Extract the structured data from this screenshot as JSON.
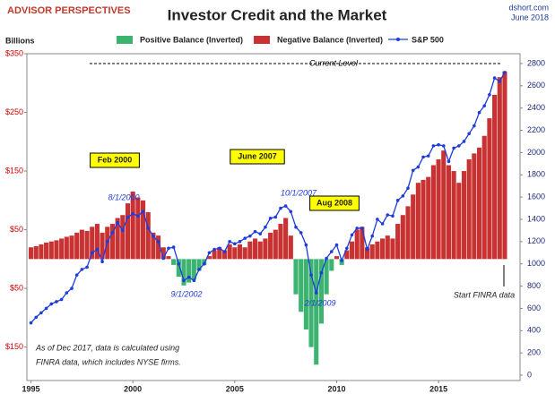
{
  "brand": "ADVISOR PERSPECTIVES",
  "source": "dshort.com",
  "date": "June 2018",
  "chart_data": {
    "type": "bar-line",
    "title": "Investor Credit and the Market",
    "y_label": "Billions",
    "x": [
      1995,
      1995.25,
      1995.5,
      1995.75,
      1996,
      1996.25,
      1996.5,
      1996.75,
      1997,
      1997.25,
      1997.5,
      1997.75,
      1998,
      1998.25,
      1998.5,
      1998.75,
      1999,
      1999.25,
      1999.5,
      1999.75,
      2000,
      2000.25,
      2000.5,
      2000.75,
      2001,
      2001.25,
      2001.5,
      2001.75,
      2002,
      2002.25,
      2002.5,
      2002.75,
      2003,
      2003.25,
      2003.5,
      2003.75,
      2004,
      2004.25,
      2004.5,
      2004.75,
      2005,
      2005.25,
      2005.5,
      2005.75,
      2006,
      2006.25,
      2006.5,
      2006.75,
      2007,
      2007.25,
      2007.5,
      2007.75,
      2008,
      2008.25,
      2008.5,
      2008.75,
      2009,
      2009.25,
      2009.5,
      2009.75,
      2010,
      2010.25,
      2010.5,
      2010.75,
      2011,
      2011.25,
      2011.5,
      2011.75,
      2012,
      2012.25,
      2012.5,
      2012.75,
      2013,
      2013.25,
      2013.5,
      2013.75,
      2014,
      2014.25,
      2014.5,
      2014.75,
      2015,
      2015.25,
      2015.5,
      2015.75,
      2016,
      2016.25,
      2016.5,
      2016.75,
      2017,
      2017.25,
      2017.5,
      2017.75,
      2018,
      2018.25
    ],
    "series": [
      {
        "name": "Positive Balance (Inverted)",
        "color": "#3cb371",
        "values": [
          null,
          null,
          null,
          null,
          null,
          null,
          null,
          null,
          null,
          null,
          null,
          null,
          null,
          null,
          null,
          null,
          null,
          null,
          null,
          null,
          null,
          null,
          null,
          null,
          null,
          null,
          null,
          null,
          -10,
          -30,
          -45,
          -40,
          -35,
          -20,
          -10,
          null,
          null,
          null,
          null,
          null,
          null,
          null,
          null,
          null,
          null,
          null,
          null,
          null,
          null,
          null,
          null,
          null,
          -60,
          -90,
          -120,
          -150,
          -180,
          -110,
          -60,
          -20,
          null,
          -10,
          null,
          null,
          null,
          null,
          null,
          null,
          null,
          null,
          null,
          null,
          null,
          null,
          null,
          null,
          null,
          null,
          null,
          null,
          null,
          null,
          null,
          null,
          null,
          null,
          null,
          null,
          null,
          null,
          null,
          null,
          null,
          null
        ]
      },
      {
        "name": "Negative Balance (Inverted)",
        "color": "#c83232",
        "values": [
          20,
          22,
          25,
          28,
          30,
          32,
          35,
          38,
          40,
          45,
          50,
          48,
          55,
          60,
          45,
          55,
          60,
          70,
          75,
          95,
          115,
          105,
          100,
          80,
          45,
          40,
          20,
          5,
          null,
          null,
          null,
          null,
          null,
          null,
          null,
          5,
          15,
          20,
          15,
          25,
          20,
          25,
          20,
          30,
          35,
          30,
          35,
          45,
          50,
          60,
          70,
          40,
          null,
          null,
          null,
          null,
          null,
          null,
          null,
          null,
          5,
          null,
          15,
          30,
          50,
          55,
          20,
          25,
          30,
          35,
          40,
          35,
          60,
          75,
          90,
          110,
          130,
          135,
          140,
          160,
          170,
          185,
          160,
          150,
          130,
          150,
          170,
          180,
          190,
          210,
          240,
          280,
          310,
          320
        ]
      },
      {
        "name": "S&P 500",
        "color": "#1e3cdc",
        "axis": "y2",
        "values": [
          470,
          520,
          560,
          600,
          640,
          660,
          680,
          740,
          780,
          900,
          950,
          970,
          1100,
          1130,
          1020,
          1200,
          1280,
          1370,
          1300,
          1420,
          1450,
          1430,
          1470,
          1320,
          1250,
          1200,
          1050,
          1140,
          1150,
          1000,
          850,
          880,
          850,
          950,
          1000,
          1100,
          1130,
          1140,
          1110,
          1200,
          1180,
          1200,
          1230,
          1250,
          1290,
          1270,
          1330,
          1410,
          1420,
          1500,
          1520,
          1470,
          1330,
          1280,
          1170,
          900,
          740,
          920,
          1050,
          1110,
          1170,
          1030,
          1140,
          1260,
          1320,
          1320,
          1130,
          1250,
          1400,
          1360,
          1440,
          1430,
          1570,
          1610,
          1680,
          1840,
          1870,
          1960,
          1970,
          2060,
          2070,
          2060,
          1920,
          2040,
          2060,
          2100,
          2170,
          2240,
          2360,
          2420,
          2520,
          2670,
          2640,
          2720
        ]
      }
    ],
    "xlim": [
      1994.8,
      2019.0
    ],
    "xticks": [
      1995,
      2000,
      2005,
      2010,
      2015
    ],
    "ylim": [
      -207,
      350
    ],
    "yticks": [
      {
        "value": 350,
        "label": "$350"
      },
      {
        "value": 250,
        "label": "$250"
      },
      {
        "value": 150,
        "label": "$150"
      },
      {
        "value": 50,
        "label": "$50"
      },
      {
        "value": -50,
        "label": "$50"
      },
      {
        "value": -150,
        "label": "$150"
      }
    ],
    "y2lim": [
      -48,
      2888
    ],
    "y2ticks": [
      0,
      200,
      400,
      600,
      800,
      1000,
      1200,
      1400,
      1600,
      1800,
      2000,
      2200,
      2400,
      2600,
      2800
    ],
    "annotations": [
      "Feb 2000",
      "8/1/2000",
      "9/1/2002",
      "June 2007",
      "10/1/2007",
      "Aug 2008",
      "2/1/2009",
      "Current Level",
      "Start FINRA data",
      "As of Dec 2017,  data is calculated using",
      "FINRA data, which includes NYSE firms."
    ]
  }
}
